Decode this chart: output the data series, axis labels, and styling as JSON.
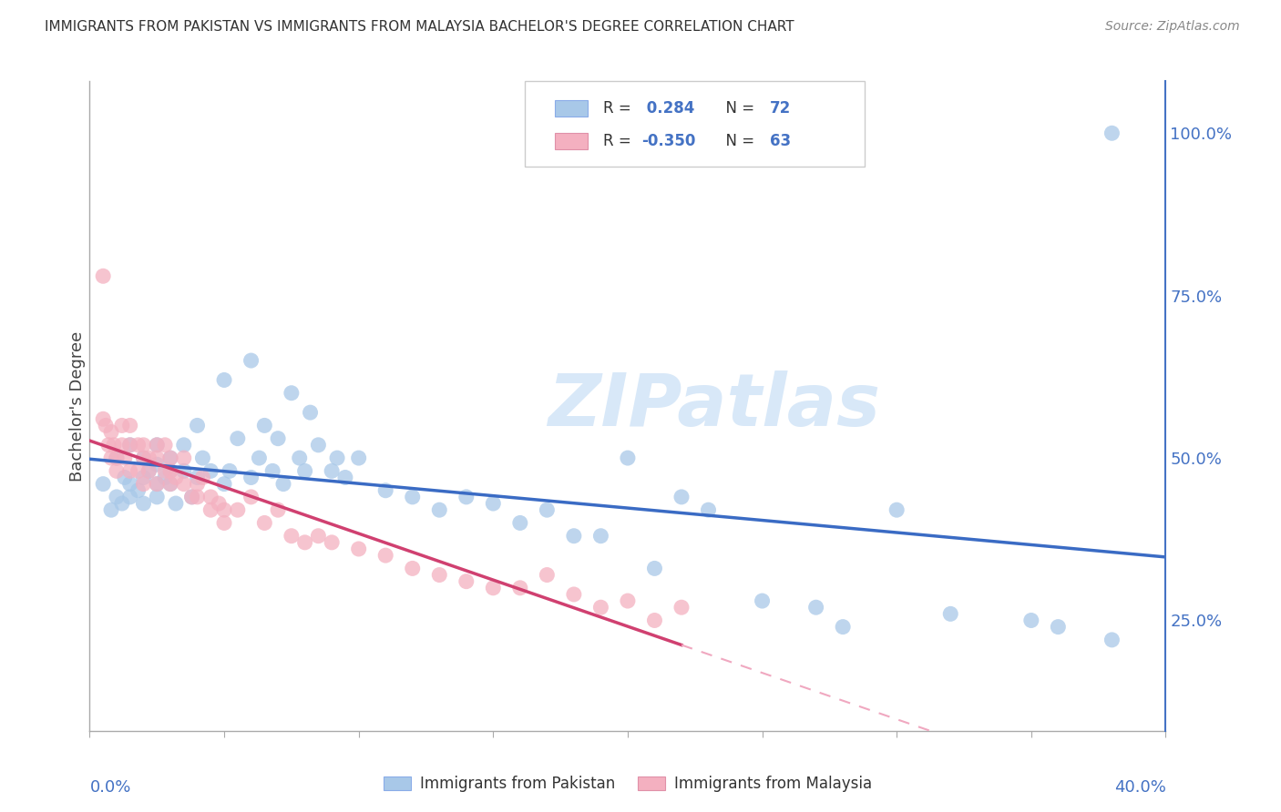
{
  "title": "IMMIGRANTS FROM PAKISTAN VS IMMIGRANTS FROM MALAYSIA BACHELOR'S DEGREE CORRELATION CHART",
  "source": "Source: ZipAtlas.com",
  "ylabel": "Bachelor's Degree",
  "r_pakistan": 0.284,
  "n_pakistan": 72,
  "r_malaysia": -0.35,
  "n_malaysia": 63,
  "pakistan_dot_color": "#a8c8e8",
  "malaysia_dot_color": "#f4b0c0",
  "pakistan_line_color": "#3a6bc4",
  "malaysia_line_solid_color": "#d04070",
  "malaysia_line_dash_color": "#f0a8c0",
  "right_axis_color": "#4472c4",
  "ytick_labels": [
    "100.0%",
    "75.0%",
    "50.0%",
    "25.0%"
  ],
  "ytick_values": [
    1.0,
    0.75,
    0.5,
    0.25
  ],
  "xlim": [
    0.0,
    0.4
  ],
  "ylim": [
    0.08,
    1.08
  ],
  "watermark_color": "#d8e8f8",
  "grid_color": "#cccccc",
  "background_color": "#ffffff",
  "legend_r_color": "#4472c4",
  "legend_n_color": "#4472c4",
  "pak_x": [
    0.005,
    0.008,
    0.01,
    0.01,
    0.012,
    0.013,
    0.015,
    0.015,
    0.015,
    0.018,
    0.02,
    0.02,
    0.02,
    0.022,
    0.025,
    0.025,
    0.025,
    0.025,
    0.028,
    0.03,
    0.03,
    0.03,
    0.032,
    0.035,
    0.035,
    0.038,
    0.04,
    0.04,
    0.042,
    0.045,
    0.05,
    0.05,
    0.052,
    0.055,
    0.06,
    0.06,
    0.063,
    0.065,
    0.068,
    0.07,
    0.072,
    0.075,
    0.078,
    0.08,
    0.082,
    0.085,
    0.09,
    0.092,
    0.095,
    0.1,
    0.11,
    0.12,
    0.13,
    0.14,
    0.15,
    0.16,
    0.17,
    0.18,
    0.19,
    0.2,
    0.21,
    0.22,
    0.23,
    0.25,
    0.27,
    0.28,
    0.3,
    0.32,
    0.35,
    0.36,
    0.38,
    0.38
  ],
  "pak_y": [
    0.46,
    0.42,
    0.5,
    0.44,
    0.43,
    0.47,
    0.46,
    0.44,
    0.52,
    0.45,
    0.5,
    0.47,
    0.43,
    0.48,
    0.46,
    0.49,
    0.52,
    0.44,
    0.47,
    0.5,
    0.46,
    0.48,
    0.43,
    0.52,
    0.48,
    0.44,
    0.55,
    0.47,
    0.5,
    0.48,
    0.62,
    0.46,
    0.48,
    0.53,
    0.65,
    0.47,
    0.5,
    0.55,
    0.48,
    0.53,
    0.46,
    0.6,
    0.5,
    0.48,
    0.57,
    0.52,
    0.48,
    0.5,
    0.47,
    0.5,
    0.45,
    0.44,
    0.42,
    0.44,
    0.43,
    0.4,
    0.42,
    0.38,
    0.38,
    0.5,
    0.33,
    0.44,
    0.42,
    0.28,
    0.27,
    0.24,
    0.42,
    0.26,
    0.25,
    0.24,
    0.22,
    1.0
  ],
  "mal_x": [
    0.005,
    0.006,
    0.007,
    0.008,
    0.008,
    0.009,
    0.01,
    0.01,
    0.012,
    0.012,
    0.013,
    0.015,
    0.015,
    0.015,
    0.018,
    0.018,
    0.02,
    0.02,
    0.02,
    0.022,
    0.022,
    0.025,
    0.025,
    0.025,
    0.028,
    0.028,
    0.03,
    0.03,
    0.03,
    0.032,
    0.035,
    0.035,
    0.038,
    0.04,
    0.04,
    0.042,
    0.045,
    0.045,
    0.048,
    0.05,
    0.05,
    0.055,
    0.06,
    0.065,
    0.07,
    0.075,
    0.08,
    0.085,
    0.09,
    0.1,
    0.11,
    0.12,
    0.13,
    0.14,
    0.15,
    0.16,
    0.17,
    0.18,
    0.19,
    0.2,
    0.21,
    0.22,
    0.005
  ],
  "mal_y": [
    0.56,
    0.55,
    0.52,
    0.5,
    0.54,
    0.52,
    0.5,
    0.48,
    0.52,
    0.55,
    0.5,
    0.52,
    0.55,
    0.48,
    0.52,
    0.48,
    0.5,
    0.52,
    0.46,
    0.5,
    0.48,
    0.52,
    0.5,
    0.46,
    0.52,
    0.48,
    0.5,
    0.48,
    0.46,
    0.47,
    0.5,
    0.46,
    0.44,
    0.46,
    0.44,
    0.47,
    0.44,
    0.42,
    0.43,
    0.42,
    0.4,
    0.42,
    0.44,
    0.4,
    0.42,
    0.38,
    0.37,
    0.38,
    0.37,
    0.36,
    0.35,
    0.33,
    0.32,
    0.31,
    0.3,
    0.3,
    0.32,
    0.29,
    0.27,
    0.28,
    0.25,
    0.27,
    0.78
  ]
}
